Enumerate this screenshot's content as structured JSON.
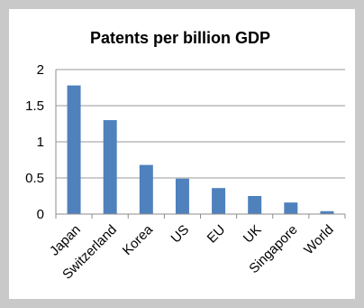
{
  "chart_data": {
    "type": "bar",
    "title": "Patents per billion GDP",
    "categories": [
      "Japan",
      "Switzerland",
      "Korea",
      "US",
      "EU",
      "UK",
      "Singapore",
      "World"
    ],
    "values": [
      1.78,
      1.3,
      0.68,
      0.49,
      0.36,
      0.25,
      0.16,
      0.04
    ],
    "ylim": [
      0,
      2
    ],
    "y_ticks": [
      "0",
      "0.5",
      "1",
      "1.5",
      "2"
    ],
    "grid": true,
    "bar_color": "#4f81bd"
  }
}
